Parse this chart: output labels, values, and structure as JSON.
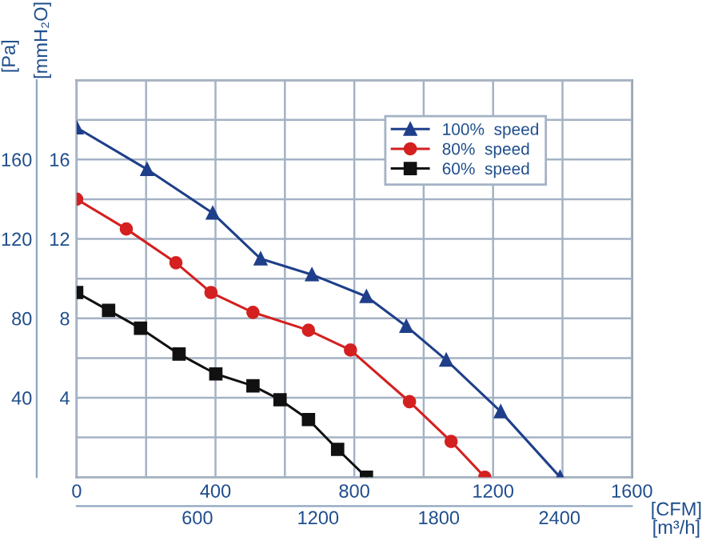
{
  "chart_data": {
    "type": "line",
    "xlabel": "[CFM]",
    "x2label": "[m³/h]",
    "ylabel": "[mmH₂O]",
    "y2label": "[Pa]",
    "xlim": [
      0,
      1600
    ],
    "xticks": [
      0,
      {
        "value": 200,
        "label": null
      },
      400,
      {
        "value": 600,
        "label": null
      },
      800,
      {
        "value": 1000,
        "label": null
      },
      1200,
      {
        "value": 1400,
        "label": null
      },
      1600
    ],
    "x2lim": [
      0,
      2760
    ],
    "x2ticks": [
      600,
      1200,
      1800,
      2400
    ],
    "ylim": [
      0,
      20
    ],
    "yticks": [
      {
        "value": 2,
        "label": null
      },
      4,
      {
        "value": 6,
        "label": null
      },
      8,
      {
        "value": 10,
        "label": null
      },
      12,
      {
        "value": 14,
        "label": null
      },
      16,
      {
        "value": 18,
        "label": null
      },
      {
        "value": 20,
        "label": null
      }
    ],
    "y2lim": [
      0,
      200
    ],
    "y2ticks": [
      40,
      80,
      120,
      160
    ],
    "grid": true,
    "legend": "top right",
    "series": [
      {
        "name": "100%  speed",
        "color": "#1f3f8a",
        "marker": "triangle",
        "x": [
          0,
          203,
          392,
          530,
          678,
          835,
          950,
          1065,
          1222,
          1393
        ],
        "values": [
          17.6,
          15.5,
          13.3,
          11.0,
          10.2,
          9.1,
          7.6,
          5.9,
          3.3,
          0
        ]
      },
      {
        "name": "80%  speed",
        "color": "#d42020",
        "marker": "circle",
        "x": [
          0,
          143,
          286,
          387,
          508,
          668,
          789,
          959,
          1079,
          1176
        ],
        "values": [
          14.0,
          12.5,
          10.8,
          9.3,
          8.3,
          7.4,
          6.4,
          3.8,
          1.8,
          0
        ]
      },
      {
        "name": "60%  speed",
        "color": "#111111",
        "marker": "square",
        "x": [
          0,
          92,
          184,
          295,
          401,
          508,
          586,
          668,
          752,
          835
        ],
        "values": [
          9.3,
          8.4,
          7.5,
          6.2,
          5.2,
          4.6,
          3.9,
          2.9,
          1.4,
          0
        ]
      }
    ]
  }
}
